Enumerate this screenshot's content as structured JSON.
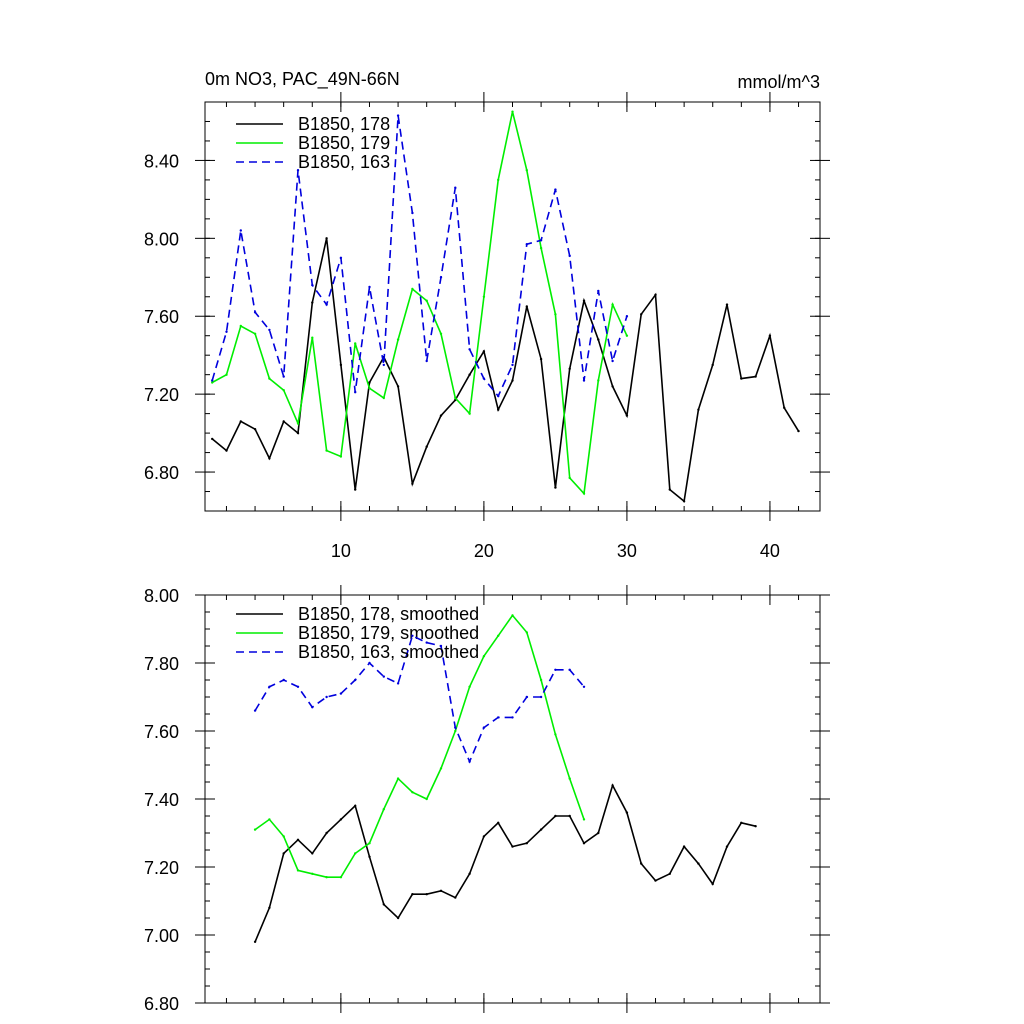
{
  "title_left": "0m NO3, PAC_49N-66N",
  "title_right": "mmol/m^3",
  "chart_data": [
    {
      "type": "line",
      "xlim": [
        0.5,
        43.5
      ],
      "ylim": [
        6.6,
        8.7
      ],
      "x_ticks": [
        10,
        20,
        30,
        40
      ],
      "x_tick_labels": [
        "10",
        "20",
        "30",
        "40"
      ],
      "x_minor_step": 2,
      "y_ticks": [
        6.8,
        7.2,
        7.6,
        8.0,
        8.4
      ],
      "y_tick_labels": [
        "6.80",
        "7.20",
        "7.60",
        "8.00",
        "8.40"
      ],
      "y_minor_step": 0.1,
      "series": [
        {
          "name": "B1850, 178",
          "color": "#000000",
          "dash": "",
          "x": [
            1,
            2,
            3,
            4,
            5,
            6,
            7,
            8,
            9,
            10,
            11,
            12,
            13,
            14,
            15,
            16,
            17,
            18,
            19,
            20,
            21,
            22,
            23,
            24,
            25,
            26,
            27,
            28,
            29,
            30,
            31,
            32,
            33,
            34,
            35,
            36,
            37,
            38,
            39,
            40,
            41,
            42
          ],
          "values": [
            6.97,
            6.91,
            7.06,
            7.02,
            6.87,
            7.06,
            7.0,
            7.67,
            8.0,
            7.35,
            6.71,
            7.26,
            7.39,
            7.24,
            6.74,
            6.93,
            7.09,
            7.17,
            7.3,
            7.42,
            7.12,
            7.27,
            7.65,
            7.38,
            6.72,
            7.33,
            7.68,
            7.48,
            7.24,
            7.09,
            7.61,
            7.71,
            6.71,
            6.65,
            7.12,
            7.35,
            7.66,
            7.28,
            7.29,
            7.5,
            7.13,
            7.01
          ]
        },
        {
          "name": "B1850, 179",
          "color": "#00ee00",
          "dash": "",
          "x": [
            1,
            2,
            3,
            4,
            5,
            6,
            7,
            8,
            9,
            10,
            11,
            12,
            13,
            14,
            15,
            16,
            17,
            18,
            19,
            20,
            21,
            22,
            23,
            24,
            25,
            26,
            27,
            28,
            29,
            30
          ],
          "values": [
            7.26,
            7.3,
            7.55,
            7.51,
            7.28,
            7.22,
            7.05,
            7.49,
            6.91,
            6.88,
            7.46,
            7.23,
            7.18,
            7.48,
            7.74,
            7.68,
            7.51,
            7.18,
            7.1,
            7.7,
            8.3,
            8.65,
            8.35,
            7.95,
            7.61,
            6.77,
            6.69,
            7.27,
            7.66,
            7.5
          ]
        },
        {
          "name": "B1850, 163",
          "color": "#0000dd",
          "dash": "8 5",
          "x": [
            1,
            2,
            3,
            4,
            5,
            6,
            7,
            8,
            9,
            10,
            11,
            12,
            13,
            14,
            15,
            16,
            17,
            18,
            19,
            20,
            21,
            22,
            23,
            24,
            25,
            26,
            27,
            28,
            29,
            30
          ],
          "values": [
            7.27,
            7.52,
            8.04,
            7.62,
            7.53,
            7.29,
            8.35,
            7.76,
            7.66,
            7.9,
            7.21,
            7.75,
            7.35,
            8.63,
            8.13,
            7.37,
            7.8,
            8.26,
            7.43,
            7.28,
            7.19,
            7.35,
            7.97,
            7.99,
            8.25,
            7.91,
            7.27,
            7.73,
            7.37,
            7.6
          ]
        }
      ]
    },
    {
      "type": "line",
      "xlim": [
        0.5,
        43.5
      ],
      "ylim": [
        6.8,
        8.0
      ],
      "x_ticks": [
        10,
        20,
        30,
        40
      ],
      "x_tick_labels": [
        "",
        "",
        "",
        ""
      ],
      "x_minor_step": 2,
      "y_ticks": [
        6.8,
        7.0,
        7.2,
        7.4,
        7.6,
        7.8,
        8.0
      ],
      "y_tick_labels": [
        "6.80",
        "7.00",
        "7.20",
        "7.40",
        "7.60",
        "7.80",
        "8.00"
      ],
      "y_minor_step": 0.05,
      "series": [
        {
          "name": "B1850, 178, smoothed",
          "color": "#000000",
          "dash": "",
          "x": [
            4,
            5,
            6,
            7,
            8,
            9,
            10,
            11,
            12,
            13,
            14,
            15,
            16,
            17,
            18,
            19,
            20,
            21,
            22,
            23,
            24,
            25,
            26,
            27,
            28,
            29,
            30,
            31,
            32,
            33,
            34,
            35,
            36,
            37,
            38,
            39
          ],
          "values": [
            6.98,
            7.08,
            7.24,
            7.28,
            7.24,
            7.3,
            7.34,
            7.38,
            7.23,
            7.09,
            7.05,
            7.12,
            7.12,
            7.13,
            7.11,
            7.18,
            7.29,
            7.33,
            7.26,
            7.27,
            7.31,
            7.35,
            7.35,
            7.27,
            7.3,
            7.44,
            7.36,
            7.21,
            7.16,
            7.18,
            7.26,
            7.21,
            7.15,
            7.26,
            7.33,
            7.32
          ]
        },
        {
          "name": "B1850, 179, smoothed",
          "color": "#00ee00",
          "dash": "",
          "x": [
            4,
            5,
            6,
            7,
            8,
            9,
            10,
            11,
            12,
            13,
            14,
            15,
            16,
            17,
            18,
            19,
            20,
            21,
            22,
            23,
            24,
            25,
            26,
            27
          ],
          "values": [
            7.31,
            7.34,
            7.29,
            7.19,
            7.18,
            7.17,
            7.17,
            7.24,
            7.27,
            7.37,
            7.46,
            7.42,
            7.4,
            7.49,
            7.6,
            7.73,
            7.82,
            7.88,
            7.94,
            7.89,
            7.75,
            7.59,
            7.46,
            7.34
          ]
        },
        {
          "name": "B1850, 163, smoothed",
          "color": "#0000dd",
          "dash": "8 5",
          "x": [
            4,
            5,
            6,
            7,
            8,
            9,
            10,
            11,
            12,
            13,
            14,
            15,
            16,
            17,
            18,
            19,
            20,
            21,
            22,
            23,
            24,
            25,
            26,
            27
          ],
          "values": [
            7.66,
            7.73,
            7.75,
            7.73,
            7.67,
            7.7,
            7.71,
            7.75,
            7.8,
            7.76,
            7.74,
            7.88,
            7.86,
            7.85,
            7.61,
            7.51,
            7.61,
            7.64,
            7.64,
            7.7,
            7.7,
            7.78,
            7.78,
            7.73
          ]
        }
      ]
    }
  ]
}
